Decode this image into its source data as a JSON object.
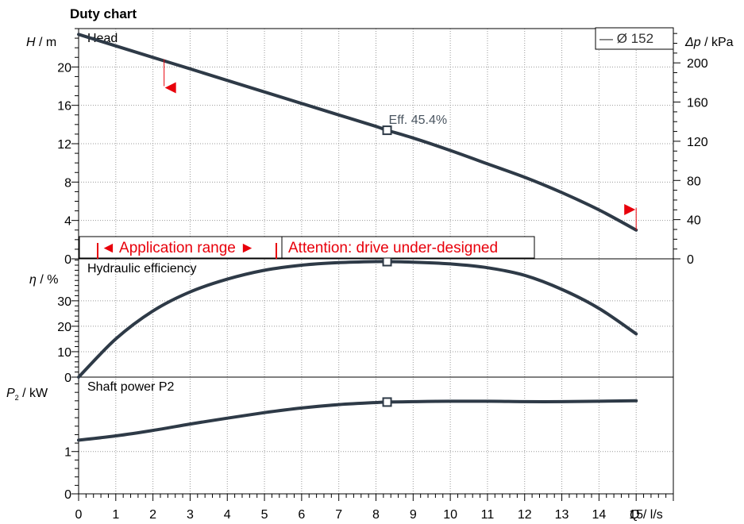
{
  "chart_data": {
    "type": "line",
    "title": "Duty chart",
    "x_axis": {
      "label_var": "Q",
      "label_unit": " / l/s",
      "range": [
        0,
        16
      ],
      "ticks": [
        0,
        1,
        2,
        3,
        4,
        5,
        6,
        7,
        8,
        9,
        10,
        11,
        12,
        13,
        14,
        15
      ]
    },
    "legend": {
      "label": "— Ø 152",
      "placement": "top-right"
    },
    "panels": [
      {
        "id": "head",
        "name": "Head",
        "y_var": "H",
        "y_unit": " / m",
        "y_range": [
          0,
          24
        ],
        "y_ticks": [
          0,
          4,
          8,
          12,
          16,
          20
        ],
        "right_axis": {
          "var": "Δp",
          "unit": " / kPa",
          "range": [
            0,
            235
          ],
          "ticks": [
            0,
            40,
            80,
            120,
            160,
            200
          ]
        },
        "series": {
          "x": [
            0,
            1,
            2,
            3,
            4,
            5,
            6,
            7,
            8,
            8.3,
            9,
            10,
            11,
            12,
            13,
            14,
            15
          ],
          "y": [
            23.4,
            22.2,
            21.0,
            19.8,
            18.6,
            17.4,
            16.2,
            15.0,
            13.8,
            13.4,
            12.6,
            11.3,
            9.9,
            8.5,
            6.9,
            5.1,
            3.0
          ]
        },
        "operating_point": {
          "x": 8.3,
          "y": 13.4
        },
        "efficiency_label": "Eff.  45.4%",
        "range_markers": [
          {
            "x": 2.3,
            "y_top": 20.8,
            "y_bottom": 18.0,
            "direction": "left"
          },
          {
            "x": 15.0,
            "y_top": 5.3,
            "y_bottom": 3.0,
            "direction": "right"
          }
        ],
        "notes": {
          "application_range": "◄ Application range ►",
          "attention": "Attention: drive under-designed"
        }
      },
      {
        "id": "efficiency",
        "name": "Hydraulic efficiency",
        "y_var": "η",
        "y_unit": " / %",
        "y_range": [
          0,
          46.5
        ],
        "y_ticks": [
          0,
          10,
          20,
          30
        ],
        "series": {
          "x": [
            0,
            1,
            2,
            3,
            4,
            5,
            6,
            7,
            8,
            8.3,
            9,
            10,
            11,
            12,
            13,
            14,
            15
          ],
          "y": [
            0,
            15,
            26,
            33.5,
            38.5,
            42,
            44,
            45,
            45.4,
            45.4,
            45.2,
            44.5,
            43,
            40,
            34.5,
            27,
            17
          ]
        },
        "operating_point": {
          "x": 8.3,
          "y": 45.4
        }
      },
      {
        "id": "power",
        "name": "Shaft power P2",
        "y_var": "P",
        "y_sub": "2",
        "y_unit": " / kW",
        "y_range": [
          0,
          2.76
        ],
        "y_ticks": [
          0,
          1
        ],
        "series": {
          "x": [
            0,
            1,
            2,
            3,
            4,
            5,
            6,
            7,
            8,
            8.3,
            9,
            10,
            11,
            12,
            13,
            14,
            15
          ],
          "y": [
            1.27,
            1.37,
            1.5,
            1.65,
            1.79,
            1.92,
            2.03,
            2.11,
            2.16,
            2.17,
            2.18,
            2.19,
            2.19,
            2.18,
            2.18,
            2.19,
            2.2
          ]
        },
        "operating_point": {
          "x": 8.3,
          "y": 2.17
        }
      }
    ],
    "colors": {
      "curve": "#2e3a47",
      "warning": "#e8000b",
      "grid": "#999999",
      "axis": "#000000"
    }
  }
}
